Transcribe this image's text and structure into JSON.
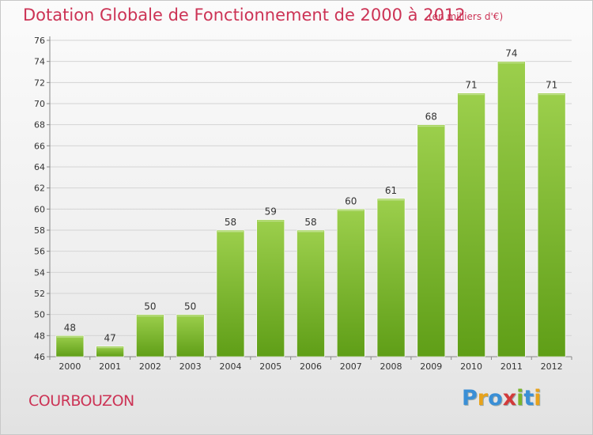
{
  "page": {
    "title": "Dotation Globale de Fonctionnement de 2000 à 2012",
    "unit": "(en milliers d'€)",
    "commune": "COURBOUZON",
    "brand": "Proxiti"
  },
  "colors": {
    "title": "#cc3355",
    "bar_top": "#9ccf4c",
    "bar_bottom": "#5f9e17",
    "grid": "#d4d4d4"
  },
  "chart_data": {
    "type": "bar",
    "title": "Dotation Globale de Fonctionnement de 2000 à 2012",
    "xlabel": "",
    "ylabel": "",
    "ylim": [
      46,
      76
    ],
    "ytick_step": 2,
    "grid": true,
    "categories": [
      "2000",
      "2001",
      "2002",
      "2003",
      "2004",
      "2005",
      "2006",
      "2007",
      "2008",
      "2009",
      "2010",
      "2011",
      "2012"
    ],
    "values": [
      48,
      47,
      50,
      50,
      58,
      59,
      58,
      60,
      61,
      68,
      71,
      74,
      71
    ]
  }
}
